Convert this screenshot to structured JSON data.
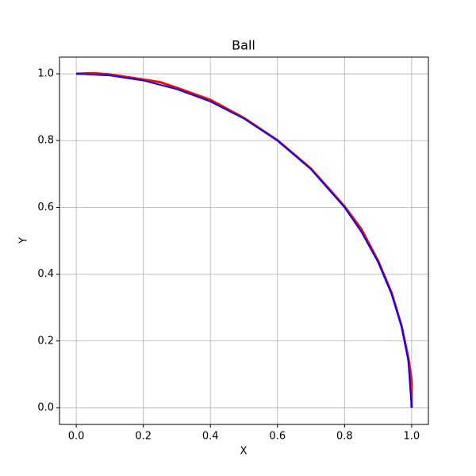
{
  "chart_data": {
    "type": "line",
    "title": "Ball",
    "x_label": "X",
    "y_label": "Y",
    "series": [
      {
        "color": "#ff0000",
        "x": [
          0,
          0.05,
          0.1,
          0.2,
          0.25,
          0.3,
          0.4,
          0.5,
          0.6,
          0.7,
          0.8,
          0.85,
          0.9,
          0.94,
          0.97,
          0.99,
          1.0,
          1.0
        ],
        "values": [
          1,
          1.002,
          0.998,
          0.983,
          0.975,
          0.958,
          0.922,
          0.868,
          0.801,
          0.716,
          0.603,
          0.535,
          0.44,
          0.345,
          0.245,
          0.15,
          0.08,
          0
        ]
      },
      {
        "color": "#0000ff",
        "x": [
          0,
          0.1,
          0.2,
          0.3,
          0.4,
          0.5,
          0.6,
          0.7,
          0.8,
          0.85,
          0.9,
          0.94,
          0.97,
          0.99,
          1.0
        ],
        "values": [
          1,
          0.995,
          0.98,
          0.954,
          0.917,
          0.866,
          0.8,
          0.714,
          0.6,
          0.527,
          0.436,
          0.341,
          0.243,
          0.141,
          0
        ]
      }
    ],
    "xlim": [
      -0.05,
      1.05
    ],
    "ylim": [
      -0.05,
      1.05
    ],
    "xticks": [
      {
        "value": 0,
        "label": "0.0"
      },
      0.2,
      0.4,
      0.6,
      0.8,
      {
        "value": 1,
        "label": "1.0"
      }
    ],
    "yticks": [
      {
        "value": 0,
        "label": "0.0"
      },
      0.2,
      0.4,
      0.6,
      0.8,
      {
        "value": 1,
        "label": "1.0"
      }
    ],
    "grid": true
  }
}
